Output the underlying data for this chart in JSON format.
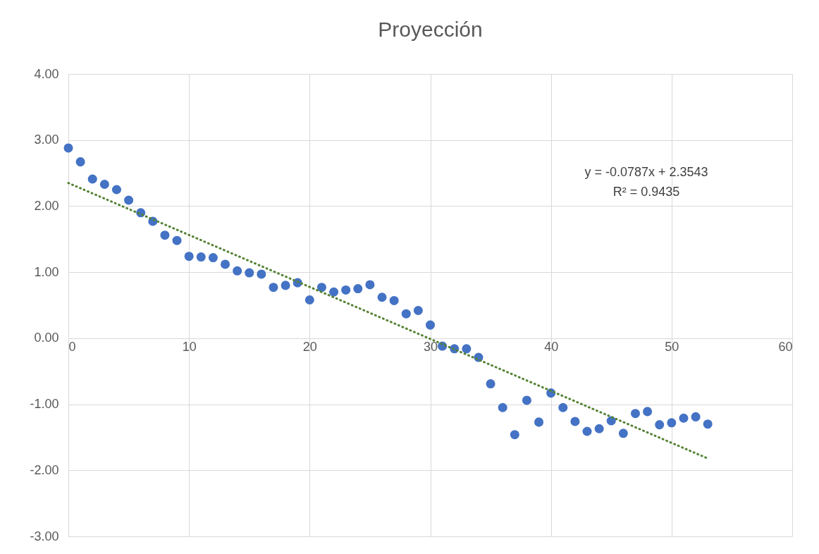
{
  "chart_data": {
    "type": "scatter",
    "title": "Proyección",
    "annotations": [
      "y = -0.0787x + 2.3543",
      "R² = 0.9435"
    ],
    "x": [
      0,
      1,
      2,
      3,
      4,
      5,
      6,
      7,
      8,
      9,
      10,
      11,
      12,
      13,
      14,
      15,
      16,
      17,
      18,
      19,
      20,
      21,
      22,
      23,
      24,
      25,
      26,
      27,
      28,
      29,
      30,
      31,
      32,
      33,
      34,
      35,
      36,
      37,
      38,
      39,
      40,
      41,
      42,
      43,
      44,
      45,
      46,
      47,
      48,
      49,
      50,
      51,
      52,
      53
    ],
    "series": [
      {
        "color": "#4472c4",
        "values": [
          2.88,
          2.67,
          2.41,
          2.33,
          2.25,
          2.09,
          1.9,
          1.77,
          1.56,
          1.48,
          1.24,
          1.23,
          1.22,
          1.12,
          1.02,
          0.99,
          0.97,
          0.77,
          0.8,
          0.84,
          0.58,
          0.77,
          0.7,
          0.73,
          0.75,
          0.81,
          0.62,
          0.57,
          0.37,
          0.42,
          0.2,
          -0.12,
          -0.16,
          -0.16,
          -0.29,
          -0.69,
          -1.05,
          -1.46,
          -0.94,
          -1.27,
          -0.83,
          -1.05,
          -1.26,
          -1.41,
          -1.37,
          -1.25,
          -1.44,
          -1.14,
          -1.11,
          -1.31,
          -1.28,
          -1.21,
          -1.19,
          -1.3
        ]
      },
      {
        "type": "line",
        "color": "#548235",
        "line_style": "dotted",
        "marker": "none",
        "x": [
          0,
          53
        ],
        "values": [
          2.35,
          -1.82
        ]
      }
    ],
    "xlim": [
      0,
      60
    ],
    "xticks": [
      0,
      10,
      20,
      30,
      40,
      50,
      60
    ],
    "ylim": [
      -3,
      4
    ],
    "yticks": [
      {
        "value": -3,
        "label": "-3.00"
      },
      {
        "value": -2,
        "label": "-2.00"
      },
      {
        "value": -1,
        "label": "-1.00"
      },
      {
        "value": 0,
        "label": "0.00"
      },
      {
        "value": 1,
        "label": "1.00"
      },
      {
        "value": 2,
        "label": "2.00"
      },
      {
        "value": 3,
        "label": "3.00"
      },
      {
        "value": 4,
        "label": "4.00"
      }
    ],
    "grid": true,
    "marker": "circle"
  }
}
